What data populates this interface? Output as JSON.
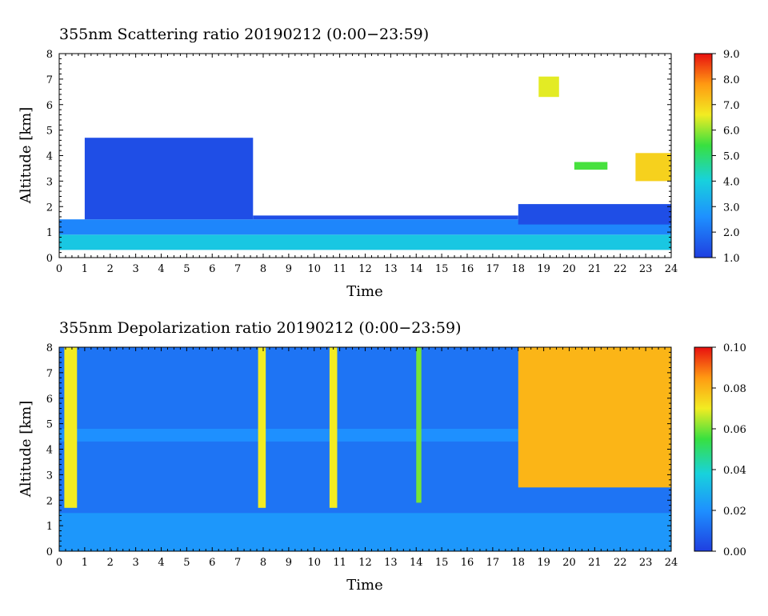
{
  "chart_data": [
    {
      "type": "heatmap",
      "title": "355nm Scattering ratio  20190212 (0:00−23:59)",
      "xlabel": "Time",
      "ylabel": "Altitude [km]",
      "xlim": [
        0,
        24
      ],
      "ylim": [
        0,
        8
      ],
      "x_ticks": [
        "0",
        "1",
        "2",
        "3",
        "4",
        "5",
        "6",
        "7",
        "8",
        "9",
        "10",
        "11",
        "12",
        "13",
        "14",
        "15",
        "16",
        "17",
        "18",
        "19",
        "20",
        "21",
        "22",
        "23",
        "24"
      ],
      "y_ticks": [
        "0",
        "1",
        "2",
        "3",
        "4",
        "5",
        "6",
        "7",
        "8"
      ],
      "colorbar": {
        "ticks": [
          "1.0",
          "2.0",
          "3.0",
          "4.0",
          "5.0",
          "6.0",
          "7.0",
          "8.0",
          "9.0"
        ],
        "range": [
          1.0,
          9.0
        ]
      },
      "features": [
        {
          "t0": 0.0,
          "t1": 24.0,
          "z0": 0.3,
          "z1": 0.9,
          "value": 3.8
        },
        {
          "t0": 0.0,
          "t1": 24.0,
          "z0": 0.9,
          "z1": 1.5,
          "value": 2.4
        },
        {
          "t0": 1.0,
          "t1": 7.6,
          "z0": 1.5,
          "z1": 4.7,
          "value": 1.3
        },
        {
          "t0": 7.6,
          "t1": 18.0,
          "z0": 1.5,
          "z1": 1.65,
          "value": 1.3
        },
        {
          "t0": 18.0,
          "t1": 24.0,
          "z0": 1.3,
          "z1": 2.1,
          "value": 1.3
        },
        {
          "t0": 18.8,
          "t1": 19.6,
          "z0": 6.3,
          "z1": 7.1,
          "value": 6.5
        },
        {
          "t0": 20.2,
          "t1": 21.5,
          "z0": 3.45,
          "z1": 3.75,
          "value": 5.5
        },
        {
          "t0": 22.6,
          "t1": 24.0,
          "z0": 3.0,
          "z1": 4.1,
          "value": 7.0
        }
      ]
    },
    {
      "type": "heatmap",
      "title": "355nm Depolarization ratio  20190212 (0:00−23:59)",
      "xlabel": "Time",
      "ylabel": "Altitude [km]",
      "xlim": [
        0,
        24
      ],
      "ylim": [
        0,
        8
      ],
      "x_ticks": [
        "0",
        "1",
        "2",
        "3",
        "4",
        "5",
        "6",
        "7",
        "8",
        "9",
        "10",
        "11",
        "12",
        "13",
        "14",
        "15",
        "16",
        "17",
        "18",
        "19",
        "20",
        "21",
        "22",
        "23",
        "24"
      ],
      "y_ticks": [
        "0",
        "1",
        "2",
        "3",
        "4",
        "5",
        "6",
        "7",
        "8"
      ],
      "colorbar": {
        "ticks": [
          "0.00",
          "0.02",
          "0.04",
          "0.06",
          "0.08",
          "0.10"
        ],
        "range": [
          0.0,
          0.1
        ]
      },
      "features": [
        {
          "t0": 0.0,
          "t1": 24.0,
          "z0": 0.0,
          "z1": 1.5,
          "value": 0.022
        },
        {
          "t0": 0.0,
          "t1": 24.0,
          "z0": 1.5,
          "z1": 8.0,
          "value": 0.013
        },
        {
          "t0": 0.0,
          "t1": 18.0,
          "z0": 4.3,
          "z1": 4.8,
          "value": 0.02
        },
        {
          "t0": 0.2,
          "t1": 0.7,
          "z0": 1.7,
          "z1": 8.0,
          "value": 0.07
        },
        {
          "t0": 7.8,
          "t1": 8.1,
          "z0": 1.7,
          "z1": 8.0,
          "value": 0.07
        },
        {
          "t0": 10.6,
          "t1": 10.9,
          "z0": 1.7,
          "z1": 8.0,
          "value": 0.07
        },
        {
          "t0": 14.0,
          "t1": 14.2,
          "z0": 1.9,
          "z1": 8.0,
          "value": 0.06
        },
        {
          "t0": 18.0,
          "t1": 24.0,
          "z0": 2.5,
          "z1": 8.0,
          "value": 0.08
        }
      ]
    }
  ]
}
